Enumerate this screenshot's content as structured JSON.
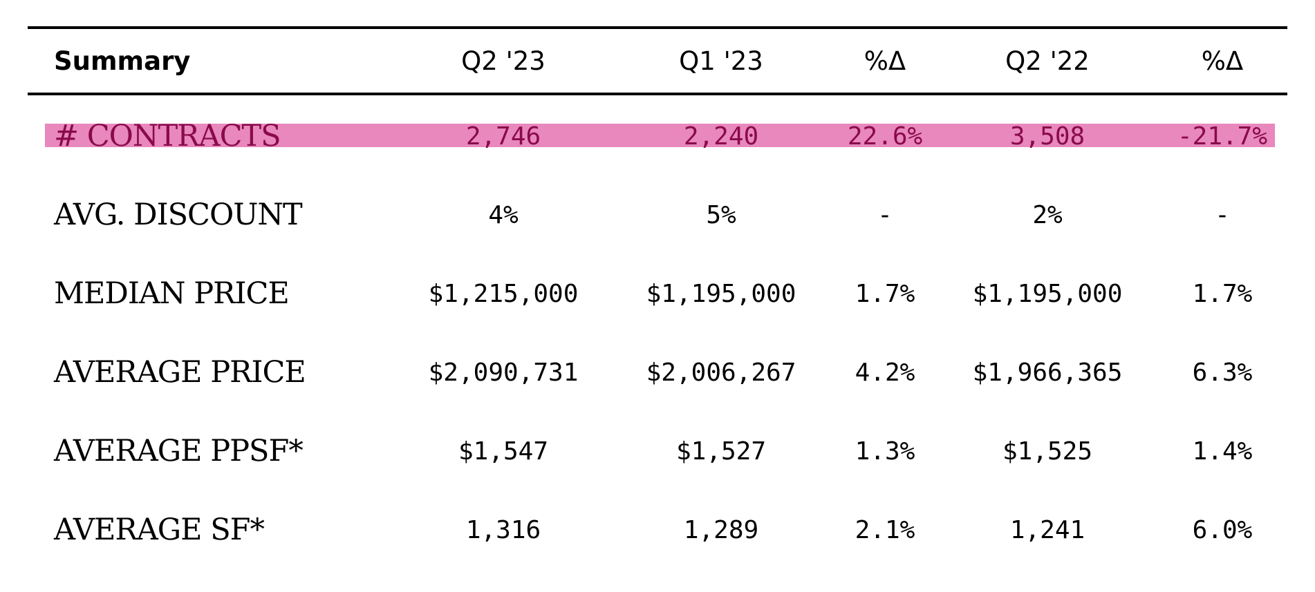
{
  "header": {
    "label": "Summary",
    "columns": [
      "Q2 '23",
      "Q1 '23",
      "%Δ",
      "Q2 '22",
      "%Δ"
    ]
  },
  "rows": [
    {
      "label": "# CONTRACTS",
      "values": [
        "2,746",
        "2,240",
        "22.6%",
        "3,508",
        "-21.7%"
      ]
    },
    {
      "label": "AVG. DISCOUNT",
      "values": [
        "4%",
        "5%",
        "-",
        "2%",
        "-"
      ]
    },
    {
      "label": "MEDIAN PRICE",
      "values": [
        "$1,215,000",
        "$1,195,000",
        "1.7%",
        "$1,195,000",
        "1.7%"
      ]
    },
    {
      "label": "AVERAGE PRICE",
      "values": [
        "$2,090,731",
        "$2,006,267",
        "4.2%",
        "$1,966,365",
        "6.3%"
      ]
    },
    {
      "label": "AVERAGE PPSF*",
      "values": [
        "$1,547",
        "$1,527",
        "1.3%",
        "$1,525",
        "1.4%"
      ]
    },
    {
      "label": "AVERAGE SF*",
      "values": [
        "1,316",
        "1,289",
        "2.1%",
        "1,241",
        "6.0%"
      ]
    }
  ],
  "colors": {
    "highlight": "#e888bd",
    "highlight_text": "#8a0a4a",
    "rule": "#000000"
  }
}
